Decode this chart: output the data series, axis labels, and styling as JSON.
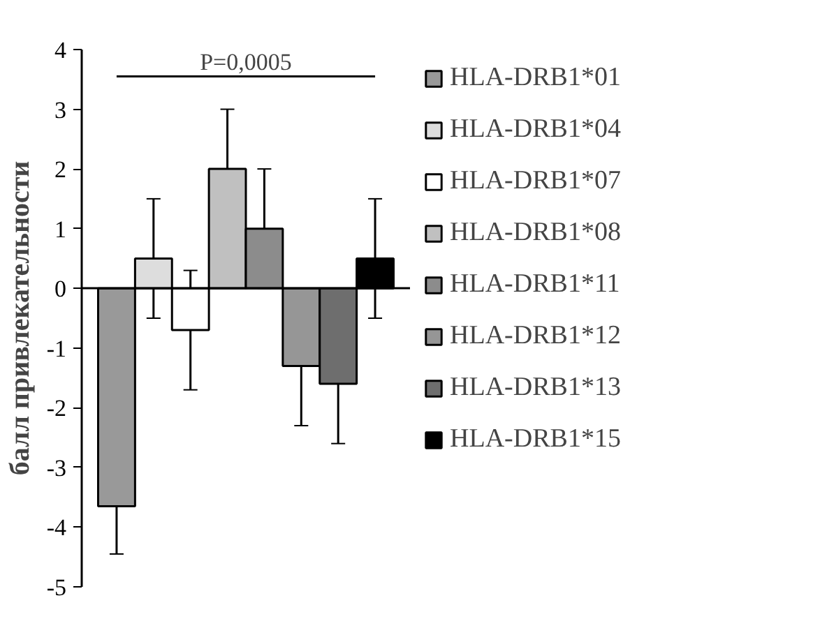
{
  "chart_data": {
    "type": "bar",
    "ylabel": "балл привлекательности",
    "categories": [
      null
    ],
    "series": [
      {
        "name": "HLA-DRB1*01",
        "color": "#999999",
        "values": [
          -3.65
        ],
        "errors": [
          0.8
        ]
      },
      {
        "name": "HLA-DRB1*04",
        "color": "#dddddd",
        "values": [
          0.5
        ],
        "errors": [
          1.0
        ]
      },
      {
        "name": "HLA-DRB1*07",
        "color": "#ffffff",
        "values": [
          -0.7
        ],
        "errors": [
          1.0
        ]
      },
      {
        "name": "HLA-DRB1*08",
        "color": "#c0c0c0",
        "values": [
          2.0
        ],
        "errors": [
          1.0
        ]
      },
      {
        "name": "HLA-DRB1*11",
        "color": "#8c8c8c",
        "values": [
          1.0
        ],
        "errors": [
          1.0
        ]
      },
      {
        "name": "HLA-DRB1*12",
        "color": "#969696",
        "values": [
          -1.3
        ],
        "errors": [
          1.0
        ]
      },
      {
        "name": "HLA-DRB1*13",
        "color": "#6e6e6e",
        "values": [
          -1.6
        ],
        "errors": [
          1.0
        ]
      },
      {
        "name": "HLA-DRB1*15",
        "color": "#000000",
        "values": [
          0.5
        ],
        "errors": [
          1.0
        ]
      }
    ],
    "annotations": [
      "P=0,0005"
    ],
    "ylim": [
      -5,
      4
    ],
    "yticks": [
      -5,
      -4,
      -3,
      -2,
      -1,
      0,
      1,
      2,
      3,
      4
    ],
    "legend": "right"
  }
}
